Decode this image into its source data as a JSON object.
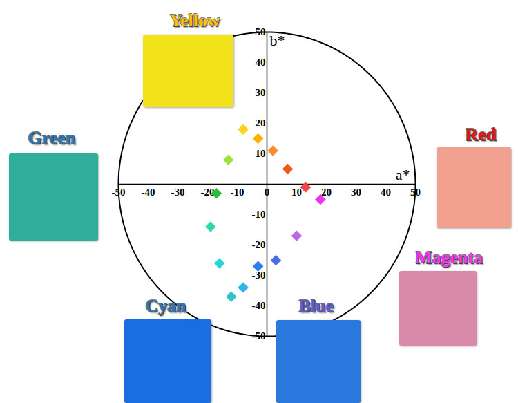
{
  "chart_data": {
    "type": "scatter",
    "x_label": "a*",
    "y_label": "b*",
    "x": [
      -8,
      -3,
      2,
      7,
      13,
      18,
      10,
      3,
      -3,
      -8,
      -12,
      -16,
      -19,
      -17,
      -13
    ],
    "values": [
      18,
      15,
      11,
      5,
      -1,
      -5,
      -17,
      -25,
      -27,
      -34,
      -37,
      -26,
      -14,
      -3,
      8
    ],
    "colors": [
      "#ffd21a",
      "#ffb000",
      "#ff8c2a",
      "#ee5a14",
      "#f04848",
      "#ee33ee",
      "#b868e8",
      "#4a6ee8",
      "#2f7ef0",
      "#33b2ee",
      "#2ec6cc",
      "#2ad6d6",
      "#2ed8a8",
      "#2ebd3a",
      "#9ee040"
    ],
    "marker": "diamond",
    "xlim": [
      -50,
      50
    ],
    "ylim": [
      -50,
      50
    ],
    "xticks": [
      -50,
      -40,
      -30,
      -20,
      -10,
      0,
      10,
      20,
      30,
      40,
      50
    ],
    "yticks": [
      -50,
      -40,
      -30,
      -20,
      -10,
      10,
      20,
      30,
      40,
      50
    ],
    "annotations": [
      {
        "text": "Yellow",
        "color": "#ffc000"
      },
      {
        "text": "Green",
        "color": "#2e75b6"
      },
      {
        "text": "Red",
        "color": "#ee1010"
      },
      {
        "text": "Magenta",
        "color": "#ff33ff"
      },
      {
        "text": "Cyan",
        "color": "#2e75b6"
      },
      {
        "text": "Blue",
        "color": "#5b5bd6"
      }
    ]
  }
}
